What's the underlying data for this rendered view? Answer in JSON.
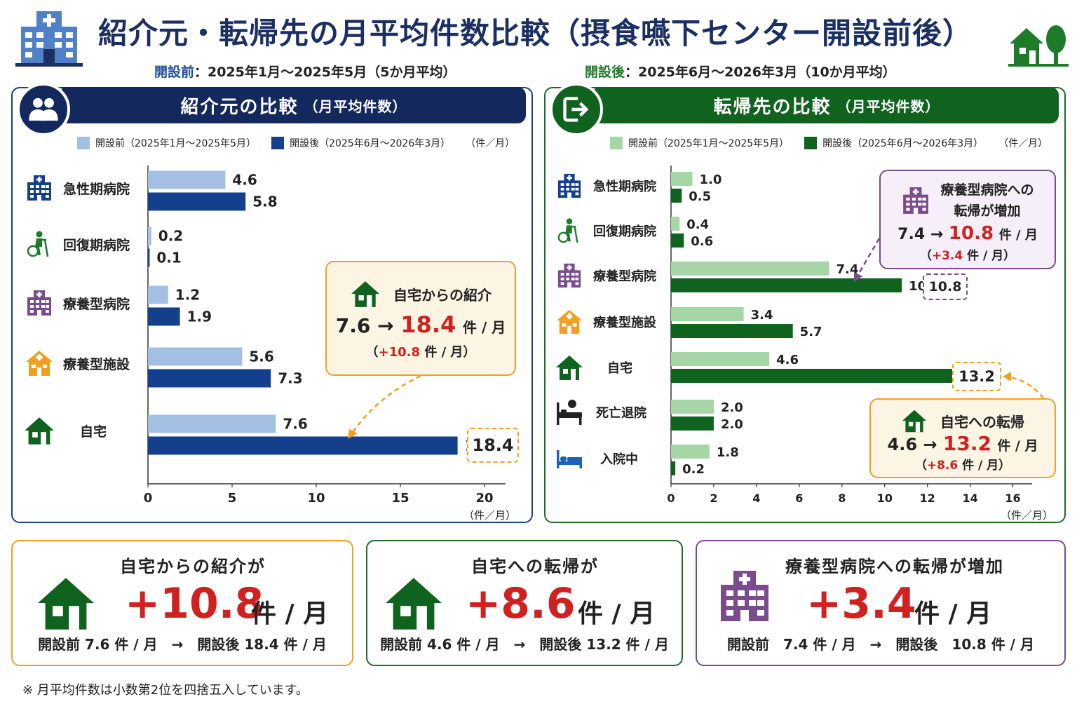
{
  "header": {
    "title": "紹介元・転帰先の月平均件数比較（摂食嚥下センター開設前後）",
    "before_label": "開設前",
    "before_text": "：2025年1月～2025年5月（5か月平均）",
    "after_label": "開設後",
    "after_text": "：2025年6月～2026年3月（10か月平均）"
  },
  "colors": {
    "navy": "#13285c",
    "blue_dark": "#143f8c",
    "blue_light": "#a3c0e4",
    "green_dark": "#10621f",
    "green_light": "#a6d5a6",
    "orange": "#f0a020",
    "purple": "#7a4c8c",
    "red": "#d12020"
  },
  "left_panel": {
    "title": "紹介元の比較",
    "subtitle": "（月平均件数）",
    "legend_before": "開設前（2025年1月～2025年5月）",
    "legend_after": "開設後（2025年6月～2026年3月）",
    "unit": "（件／月）",
    "callout": {
      "title": "自宅からの紹介",
      "from": "7.6 →",
      "to": "18.4",
      "unit": "件 / 月",
      "diff_open": "（",
      "diff": "+10.8",
      "diff_close": "件 / 月）"
    },
    "highlight_value": "18.4"
  },
  "right_panel": {
    "title": "転帰先の比較",
    "subtitle": "（月平均件数）",
    "legend_before": "開設前（2025年1月～2025年5月）",
    "legend_after": "開設後（2025年6月～2026年3月）",
    "unit": "（件／月）",
    "callout_ryoyo": {
      "title1": "療養型病院への",
      "title2": "転帰が増加",
      "from": "7.4 →",
      "to": "10.8",
      "unit": "件 / 月",
      "diff_open": "（",
      "diff": "+3.4",
      "diff_close": "件 / 月）"
    },
    "callout_home": {
      "title": "自宅への転帰",
      "from": "4.6 →",
      "to": "13.2",
      "unit": "件 / 月",
      "diff_open": "（",
      "diff": "+8.6",
      "diff_close": "件 / 月）"
    },
    "highlight_ryoyo": "10.8",
    "highlight_home": "13.2"
  },
  "chart_data": [
    {
      "type": "bar",
      "orientation": "horizontal",
      "title": "紹介元の比較（月平均件数）",
      "categories": [
        "急性期病院",
        "回復期病院",
        "療養型病院",
        "療養型施設",
        "自宅"
      ],
      "category_icons": [
        "hospital-icon",
        "rehab-icon",
        "hospital-icon",
        "facility-icon",
        "home-icon"
      ],
      "series": [
        {
          "name": "開設前（2025年1月～2025年5月）",
          "values": [
            4.6,
            0.2,
            1.2,
            5.6,
            7.6
          ],
          "value_labels": [
            "4.6",
            "0.2",
            "1.2",
            "5.6",
            "7.6"
          ],
          "color": "#a3c0e4"
        },
        {
          "name": "開設後（2025年6月～2026年3月）",
          "values": [
            5.8,
            0.1,
            1.9,
            7.3,
            18.4
          ],
          "value_labels": [
            "5.8",
            "0.1",
            "1.9",
            "7.3",
            "18.4"
          ],
          "color": "#143f8c"
        }
      ],
      "xlim": [
        0,
        20
      ],
      "xticks": [
        0,
        5,
        10,
        15,
        20
      ],
      "xtick_labels": [
        "0",
        "5",
        "10",
        "15",
        "20"
      ],
      "xlabel": "（件／月）",
      "legend_position": "top"
    },
    {
      "type": "bar",
      "orientation": "horizontal",
      "title": "転帰先の比較（月平均件数）",
      "categories": [
        "急性期病院",
        "回復期病院",
        "療養型病院",
        "療養型施設",
        "自宅",
        "死亡退院",
        "入院中"
      ],
      "category_icons": [
        "hospital-icon",
        "rehab-icon",
        "hospital-icon",
        "facility-icon",
        "home-icon",
        "deceased-icon",
        "bed-icon"
      ],
      "series": [
        {
          "name": "開設前（2025年1月～2025年5月）",
          "values": [
            1.0,
            0.4,
            7.4,
            3.4,
            4.6,
            2.0,
            1.8
          ],
          "value_labels": [
            "1.0",
            "0.4",
            "7.4",
            "3.4",
            "4.6",
            "2.0",
            "1.8"
          ],
          "color": "#a6d5a6"
        },
        {
          "name": "開設後（2025年6月～2026年3月）",
          "values": [
            0.5,
            0.6,
            10.8,
            5.7,
            13.2,
            2.0,
            0.2
          ],
          "value_labels": [
            "0.5",
            "0.6",
            "10.8",
            "5.7",
            "13.2",
            "2.0",
            "0.2"
          ],
          "color": "#10621f"
        }
      ],
      "xlim": [
        0,
        17
      ],
      "xticks": [
        0,
        2,
        4,
        6,
        8,
        10,
        12,
        14,
        16
      ],
      "xtick_labels": [
        "0",
        "2",
        "4",
        "6",
        "8",
        "10",
        "12",
        "14",
        "16"
      ],
      "xlabel": "（件／月）",
      "legend_position": "top"
    }
  ],
  "summary_cards": [
    {
      "title": "自宅からの紹介が",
      "value": "+10.8",
      "unit": "件 / 月",
      "compare": "開設前 7.6 件 / 月　→　開設後 18.4 件 / 月"
    },
    {
      "title": "自宅への転帰が",
      "value": "+8.6",
      "unit": "件 / 月",
      "compare": "開設前 4.6 件 / 月　→　開設後 13.2 件 / 月"
    },
    {
      "title": "療養型病院への転帰が増加",
      "value": "+3.4",
      "unit": "件 / 月",
      "compare": "開設前　7.4 件 / 月　→　開設後　10.8 件 / 月"
    }
  ],
  "footnote": "※ 月平均件数は小数第2位を四捨五入しています。"
}
